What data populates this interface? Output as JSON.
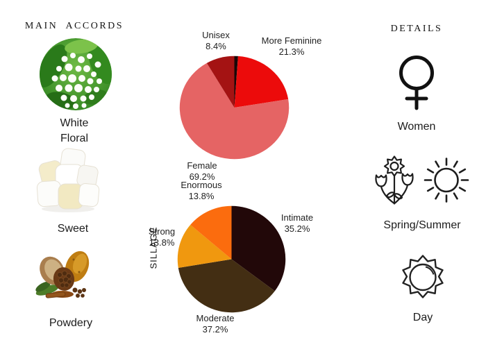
{
  "headers": {
    "left": "MAIN ACCORDS",
    "right": "DETAILS"
  },
  "accords": [
    {
      "name": "white-floral",
      "label": "White\nFloral",
      "image": "lily-of-the-valley-photo"
    },
    {
      "name": "sweet",
      "label": "Sweet",
      "image": "marshmallows-photo"
    },
    {
      "name": "powdery",
      "label": "Powdery",
      "image": "cocoa-pods-photo"
    }
  ],
  "details": [
    {
      "name": "gender",
      "icon": "female-symbol-icon",
      "label": "Women"
    },
    {
      "name": "season",
      "icon": "flowers-and-sun-icon",
      "label": "Spring/Summer"
    },
    {
      "name": "time-of-day",
      "icon": "day-sun-icon",
      "label": "Day"
    }
  ],
  "chart_data": [
    {
      "type": "pie",
      "name": "gender-votes",
      "title": "",
      "direction": "clockwise",
      "start_angle_deg": 0,
      "legend_position": "none",
      "slices": [
        {
          "label": "",
          "pct": "",
          "value": 1.1,
          "color": "#190808"
        },
        {
          "label": "More Feminine",
          "pct": "21.3%",
          "value": 21.3,
          "color": "#ec0b0b"
        },
        {
          "label": "Female",
          "pct": "69.2%",
          "value": 69.2,
          "color": "#e56464"
        },
        {
          "label": "Unisex",
          "pct": "8.4%",
          "value": 8.4,
          "color": "#a41313"
        }
      ]
    },
    {
      "type": "pie",
      "name": "sillage-votes",
      "title": "SILLAGE",
      "direction": "clockwise",
      "start_angle_deg": 0,
      "legend_position": "none",
      "slices": [
        {
          "label": "Intimate",
          "pct": "35.2%",
          "value": 35.2,
          "color": "#220809"
        },
        {
          "label": "Moderate",
          "pct": "37.2%",
          "value": 37.2,
          "color": "#432e13"
        },
        {
          "label": "Strong",
          "pct": "13.8%",
          "value": 13.8,
          "color": "#f0980f"
        },
        {
          "label": "Enormous",
          "pct": "13.8%",
          "value": 13.8,
          "color": "#fb6c0e"
        }
      ]
    }
  ]
}
